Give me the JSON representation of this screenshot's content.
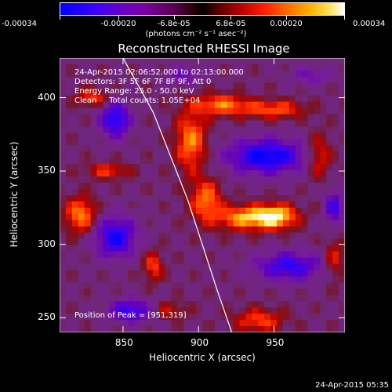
{
  "colorbar": {
    "tick_labels": [
      "-0.00034",
      "-0.00020",
      "-6.8e-05",
      "6.8e-05",
      "0.00020",
      "0.00034"
    ],
    "units_label": "(photons cm⁻² s⁻¹ asec⁻²)"
  },
  "chart_data": {
    "type": "heatmap",
    "title": "Reconstructed RHESSI Image",
    "xlabel": "Heliocentric X (arcsec)",
    "ylabel": "Heliocentric Y (arcsec)",
    "xlim": [
      808,
      997
    ],
    "ylim": [
      240,
      427
    ],
    "xticks": [
      850,
      900,
      950
    ],
    "yticks": [
      250,
      300,
      350,
      400
    ],
    "colorbar_range": [
      -0.00034,
      0.00034
    ],
    "info_lines": [
      "24-Apr-2015 02:06:52.000 to 02:13:00.000",
      "Detectors: 3F 5F 6F 7F 8F 9F, Att 0",
      "Energy Range: 25.0 - 50.0 keV",
      "Clean     Total counts: 1.05E+04"
    ],
    "peak_label": "Position of Peak = [951,319]",
    "peak_position": [
      951,
      319
    ],
    "limb_line": [
      [
        850,
        427
      ],
      [
        870,
        390
      ],
      [
        893,
        330
      ],
      [
        912,
        270
      ],
      [
        922,
        240
      ]
    ]
  },
  "footer": {
    "timestamp": "24-Apr-2015 05:35"
  }
}
